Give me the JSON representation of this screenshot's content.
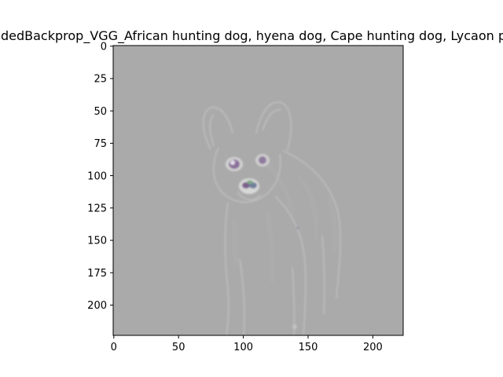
{
  "figure": {
    "title": "GuidedBackprop_VGG_African hunting dog, hyena dog, Cape hunting dog, Lycaon pictus"
  },
  "image": {
    "description_name": "guided-backprop-saliency-map",
    "background_color": "#aaaaaa",
    "edge_color": "#c4c4c4",
    "accent_purple": "#8a6f9a",
    "accent_green": "#7fa884"
  },
  "axes": {
    "x_ticks": [
      "0",
      "50",
      "100",
      "150",
      "200"
    ],
    "y_ticks": [
      "0",
      "25",
      "50",
      "75",
      "100",
      "125",
      "150",
      "175",
      "200"
    ],
    "xlim": [
      0,
      224
    ],
    "ylim": [
      224,
      0
    ]
  }
}
